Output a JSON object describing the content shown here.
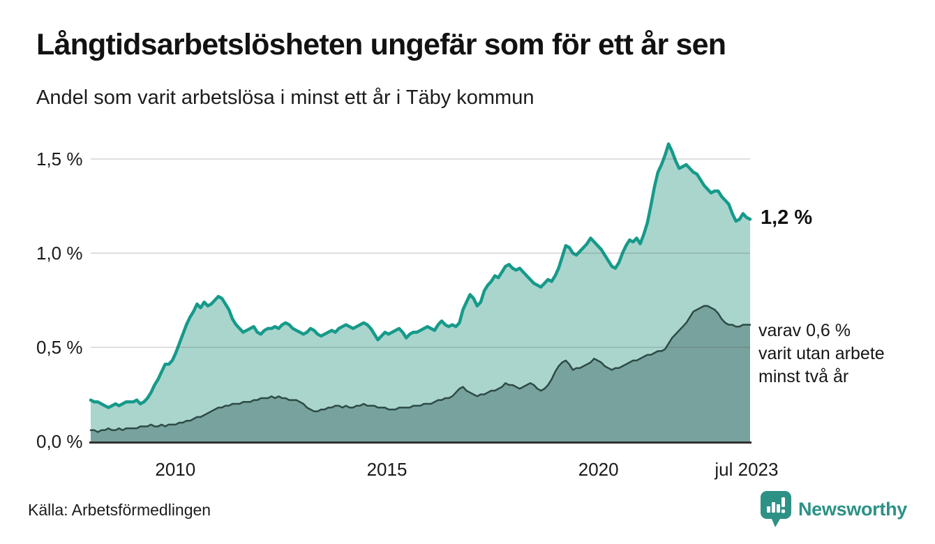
{
  "header": {
    "title": "Långtidsarbetslösheten ungefär som för ett år sen",
    "subtitle": "Andel som varit arbetslösa i minst ett år i Täby kommun"
  },
  "chart_data": {
    "type": "area",
    "title": "Långtidsarbetslösheten ungefär som för ett år sen",
    "subtitle": "Andel som varit arbetslösa i minst ett år i Täby kommun",
    "unit": "%",
    "frequency": "monthly",
    "x_start": "2008-01",
    "x_end": "2023-07",
    "x_axis": {
      "year_start": 2008.0,
      "year_end": 2023.5833,
      "ticks": [
        {
          "label": "2010",
          "year": 2010.0
        },
        {
          "label": "2015",
          "year": 2015.0
        },
        {
          "label": "2020",
          "year": 2020.0
        },
        {
          "label": "jul 2023",
          "year": 2023.5
        }
      ]
    },
    "y_axis": {
      "min": 0,
      "max": 1.6,
      "ticks": [
        {
          "label": "0,0 %",
          "value": 0.0
        },
        {
          "label": "0,5 %",
          "value": 0.5
        },
        {
          "label": "1,0 %",
          "value": 1.0
        },
        {
          "label": "1,5 %",
          "value": 1.5
        }
      ]
    },
    "gridline_color": "rgba(80,80,80,0.18)",
    "axis_line_color": "#2f2f2f",
    "series": [
      {
        "id": "minst-ett-ar",
        "name": "Andel arbetslösa minst ett år",
        "end_label": "1,2 %",
        "line_color": "#169a8a",
        "fill_color": "#a9d5cd",
        "line_width": 4.5,
        "values": [
          0.22,
          0.21,
          0.21,
          0.2,
          0.19,
          0.18,
          0.19,
          0.2,
          0.19,
          0.2,
          0.21,
          0.21,
          0.21,
          0.22,
          0.2,
          0.21,
          0.23,
          0.26,
          0.3,
          0.33,
          0.37,
          0.41,
          0.41,
          0.43,
          0.47,
          0.52,
          0.57,
          0.62,
          0.66,
          0.69,
          0.73,
          0.71,
          0.74,
          0.72,
          0.73,
          0.75,
          0.77,
          0.76,
          0.73,
          0.7,
          0.65,
          0.62,
          0.6,
          0.58,
          0.59,
          0.6,
          0.61,
          0.58,
          0.57,
          0.59,
          0.6,
          0.6,
          0.61,
          0.6,
          0.62,
          0.63,
          0.62,
          0.6,
          0.59,
          0.58,
          0.57,
          0.58,
          0.6,
          0.59,
          0.57,
          0.56,
          0.57,
          0.58,
          0.59,
          0.58,
          0.6,
          0.61,
          0.62,
          0.61,
          0.6,
          0.61,
          0.62,
          0.63,
          0.62,
          0.6,
          0.57,
          0.54,
          0.56,
          0.58,
          0.57,
          0.58,
          0.59,
          0.6,
          0.58,
          0.55,
          0.57,
          0.58,
          0.58,
          0.59,
          0.6,
          0.61,
          0.6,
          0.59,
          0.62,
          0.64,
          0.62,
          0.61,
          0.62,
          0.61,
          0.63,
          0.7,
          0.74,
          0.78,
          0.76,
          0.72,
          0.74,
          0.8,
          0.83,
          0.85,
          0.88,
          0.87,
          0.9,
          0.93,
          0.94,
          0.92,
          0.91,
          0.92,
          0.9,
          0.88,
          0.86,
          0.84,
          0.83,
          0.82,
          0.84,
          0.86,
          0.85,
          0.88,
          0.92,
          0.98,
          1.04,
          1.03,
          1.0,
          0.99,
          1.01,
          1.03,
          1.05,
          1.08,
          1.06,
          1.04,
          1.02,
          0.99,
          0.96,
          0.93,
          0.92,
          0.95,
          1.0,
          1.04,
          1.07,
          1.06,
          1.08,
          1.05,
          1.1,
          1.16,
          1.25,
          1.35,
          1.43,
          1.47,
          1.52,
          1.58,
          1.54,
          1.49,
          1.45,
          1.46,
          1.47,
          1.45,
          1.43,
          1.42,
          1.39,
          1.36,
          1.34,
          1.32,
          1.33,
          1.33,
          1.3,
          1.28,
          1.26,
          1.21,
          1.17,
          1.18,
          1.21,
          1.19,
          1.18
        ]
      },
      {
        "id": "minst-tva-ar",
        "name": "varav utan arbete minst två år",
        "end_label_lines": [
          "varav 0,6 %",
          "varit utan arbete",
          "minst två år"
        ],
        "line_color": "#2d4a46",
        "fill_color": "#78a29d",
        "line_width": 2.5,
        "values": [
          0.06,
          0.06,
          0.05,
          0.06,
          0.06,
          0.07,
          0.06,
          0.06,
          0.07,
          0.06,
          0.07,
          0.07,
          0.07,
          0.07,
          0.08,
          0.08,
          0.08,
          0.09,
          0.08,
          0.08,
          0.09,
          0.08,
          0.09,
          0.09,
          0.09,
          0.1,
          0.1,
          0.11,
          0.11,
          0.12,
          0.13,
          0.13,
          0.14,
          0.15,
          0.16,
          0.17,
          0.18,
          0.18,
          0.19,
          0.19,
          0.2,
          0.2,
          0.2,
          0.21,
          0.21,
          0.21,
          0.22,
          0.22,
          0.23,
          0.23,
          0.23,
          0.24,
          0.23,
          0.24,
          0.23,
          0.23,
          0.22,
          0.22,
          0.22,
          0.21,
          0.2,
          0.18,
          0.17,
          0.16,
          0.16,
          0.17,
          0.17,
          0.18,
          0.18,
          0.19,
          0.19,
          0.18,
          0.19,
          0.18,
          0.18,
          0.19,
          0.19,
          0.2,
          0.19,
          0.19,
          0.19,
          0.18,
          0.18,
          0.18,
          0.17,
          0.17,
          0.17,
          0.18,
          0.18,
          0.18,
          0.18,
          0.19,
          0.19,
          0.19,
          0.2,
          0.2,
          0.2,
          0.21,
          0.22,
          0.22,
          0.23,
          0.23,
          0.24,
          0.26,
          0.28,
          0.29,
          0.27,
          0.26,
          0.25,
          0.24,
          0.25,
          0.25,
          0.26,
          0.27,
          0.27,
          0.28,
          0.29,
          0.31,
          0.3,
          0.3,
          0.29,
          0.28,
          0.29,
          0.3,
          0.31,
          0.3,
          0.28,
          0.27,
          0.28,
          0.3,
          0.33,
          0.37,
          0.4,
          0.42,
          0.43,
          0.41,
          0.38,
          0.39,
          0.39,
          0.4,
          0.41,
          0.42,
          0.44,
          0.43,
          0.42,
          0.4,
          0.39,
          0.38,
          0.39,
          0.39,
          0.4,
          0.41,
          0.42,
          0.43,
          0.43,
          0.44,
          0.45,
          0.46,
          0.46,
          0.47,
          0.48,
          0.48,
          0.49,
          0.52,
          0.55,
          0.57,
          0.59,
          0.61,
          0.63,
          0.66,
          0.69,
          0.7,
          0.71,
          0.72,
          0.72,
          0.71,
          0.7,
          0.68,
          0.65,
          0.63,
          0.62,
          0.62,
          0.61,
          0.61,
          0.62,
          0.62,
          0.62
        ]
      }
    ]
  },
  "footer": {
    "source": "Källa: Arbetsförmedlingen",
    "logo_text": "Newsworthy",
    "brand_color": "#2d9186"
  }
}
